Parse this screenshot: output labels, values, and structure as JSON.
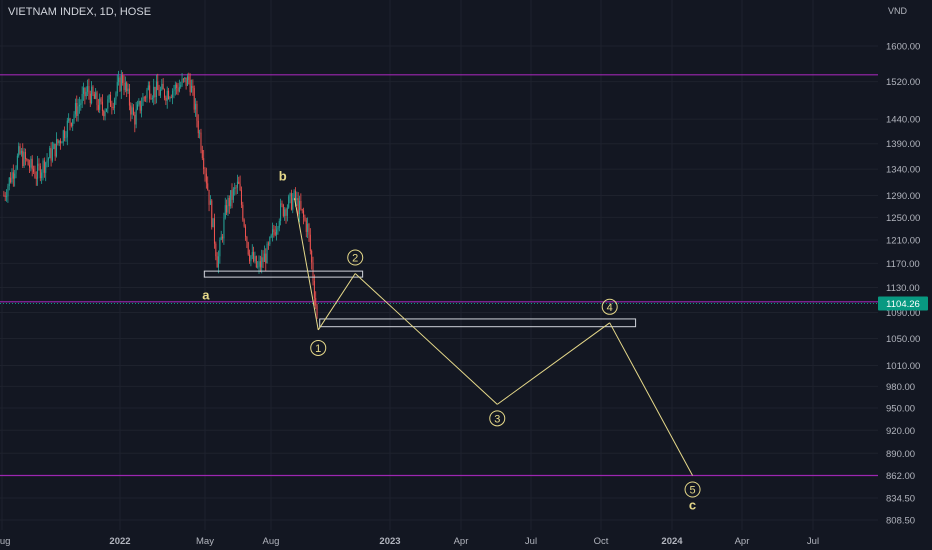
{
  "header": {
    "symbol": "VIETNAM INDEX, 1D, HOSE",
    "currency": "VND"
  },
  "colors": {
    "background": "#131722",
    "up": "#26a69a",
    "down": "#ef5350",
    "level_line": "#9c27b0",
    "wave_line": "#e6d98a",
    "price_badge": "#089981"
  },
  "chart_data": {
    "type": "candlestick",
    "title": "VIETNAM INDEX, 1D, HOSE",
    "y_axis_ticks": [
      1600.0,
      1520.0,
      1440.0,
      1390.0,
      1340.0,
      1290.0,
      1250.0,
      1210.0,
      1170.0,
      1130.0,
      1090.0,
      1050.0,
      1010.0,
      980.0,
      950.0,
      920.0,
      890.0,
      862.0,
      834.5,
      808.5
    ],
    "y_axis_scale": "log",
    "x_axis_ticks": [
      "Aug",
      "2022",
      "May",
      "Aug",
      "2023",
      "Apr",
      "Jul",
      "Oct",
      "2024",
      "Apr",
      "Jul"
    ],
    "last_price": {
      "value": 1104.26,
      "label": "1104.26"
    },
    "horizontal_levels": [
      1535,
      1107,
      862
    ],
    "zones": [
      {
        "from": "2022-04-25",
        "to": "2022-11-25",
        "low": 1150,
        "high": 1157
      },
      {
        "from": "2022-09-28",
        "to": "2023-11-29",
        "low": 1068,
        "high": 1080
      }
    ],
    "wave_labels": [
      {
        "label": "a",
        "date": "2022-04-27",
        "price": 1120
      },
      {
        "label": "b",
        "date": "2022-08-09",
        "price": 1330
      }
    ],
    "projection": [
      {
        "label": "1",
        "date": "2022-09-26",
        "price": 1063
      },
      {
        "label": "2",
        "date": "2022-11-15",
        "price": 1153
      },
      {
        "label": "3",
        "date": "2023-05-26",
        "price": 955
      },
      {
        "label": "4",
        "date": "2023-10-25",
        "price": 1074
      },
      {
        "label": "5",
        "date": "2024-02-14",
        "price": 862
      }
    ],
    "wave_c_label": "c",
    "price_path": [
      {
        "date": "2021-07-28",
        "price": 1290
      },
      {
        "date": "2021-08-18",
        "price": 1370
      },
      {
        "date": "2021-09-10",
        "price": 1330
      },
      {
        "date": "2021-10-05",
        "price": 1380
      },
      {
        "date": "2021-10-28",
        "price": 1445
      },
      {
        "date": "2021-11-18",
        "price": 1500
      },
      {
        "date": "2021-12-08",
        "price": 1460
      },
      {
        "date": "2021-12-24",
        "price": 1485
      },
      {
        "date": "2022-01-04",
        "price": 1530
      },
      {
        "date": "2022-01-20",
        "price": 1440
      },
      {
        "date": "2022-02-08",
        "price": 1505
      },
      {
        "date": "2022-03-01",
        "price": 1495
      },
      {
        "date": "2022-03-22",
        "price": 1510
      },
      {
        "date": "2022-04-05",
        "price": 1525
      },
      {
        "date": "2022-04-22",
        "price": 1380
      },
      {
        "date": "2022-05-13",
        "price": 1170
      },
      {
        "date": "2022-05-25",
        "price": 1270
      },
      {
        "date": "2022-06-10",
        "price": 1310
      },
      {
        "date": "2022-06-24",
        "price": 1190
      },
      {
        "date": "2022-07-06",
        "price": 1160
      },
      {
        "date": "2022-07-20",
        "price": 1190
      },
      {
        "date": "2022-08-05",
        "price": 1260
      },
      {
        "date": "2022-08-25",
        "price": 1285
      },
      {
        "date": "2022-09-12",
        "price": 1230
      },
      {
        "date": "2022-09-26",
        "price": 1063
      }
    ]
  }
}
